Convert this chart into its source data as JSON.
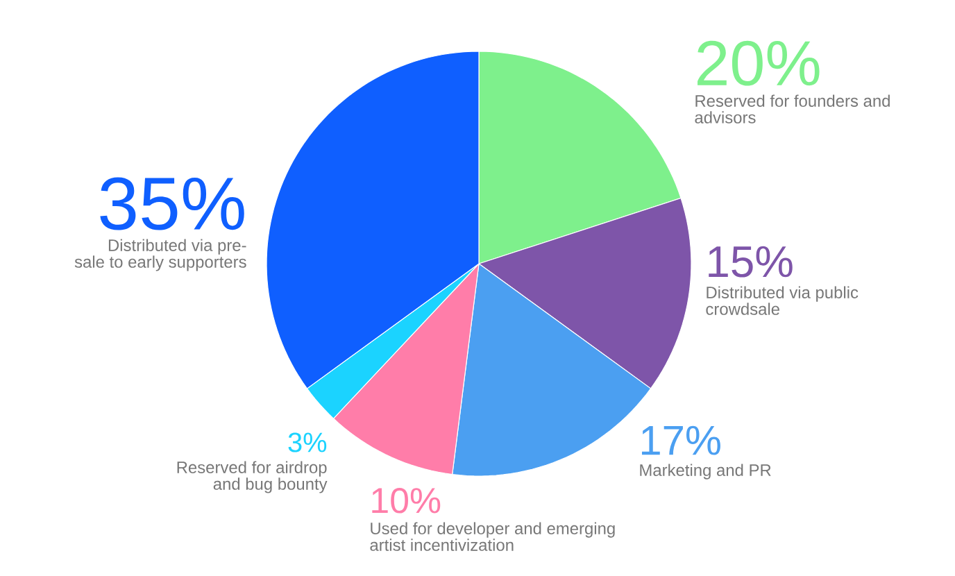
{
  "chart_data": {
    "type": "pie",
    "categories": [
      "Reserved for founders and advisors",
      "Distributed via public crowdsale",
      "Marketing and PR",
      "Used for developer and emerging artist incentivization",
      "Reserved for airdrop and bug bounty",
      "Distributed via pre-sale to early supporters"
    ],
    "values": [
      20,
      15,
      17,
      10,
      3,
      35
    ],
    "value_labels": [
      "20%",
      "15%",
      "17%",
      "10%",
      "3%",
      "35%"
    ],
    "colors": [
      "#7ef08c",
      "#7e55a9",
      "#4b9ff1",
      "#ff7da9",
      "#1bd3ff",
      "#0f5fff"
    ]
  }
}
